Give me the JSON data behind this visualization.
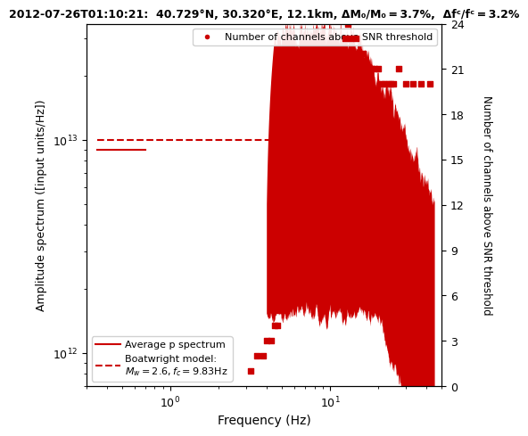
{
  "title": "2012-07-26T01:10:21:  40.729°N, 30.320°E, 12.1km, ΔM₀/M₀ = 3.7%,  Δfᶜ/fᶜ = 3.2%",
  "xlabel": "Frequency (Hz)",
  "ylabel": "Amplitude spectrum ([input units/Hz])",
  "ylabel_right": "Number of channels above SNR threshold",
  "xlim": [
    0.3,
    50
  ],
  "ylim": [
    700000000000.0,
    35000000000000.0
  ],
  "ylim_right": [
    0,
    24
  ],
  "yticks_right": [
    0,
    3,
    6,
    9,
    12,
    15,
    18,
    21,
    24
  ],
  "color_main": "#cc0000",
  "boatwright_level": 10000000000000.0,
  "boatwright_fc": 9.83,
  "title_fontsize": 9
}
